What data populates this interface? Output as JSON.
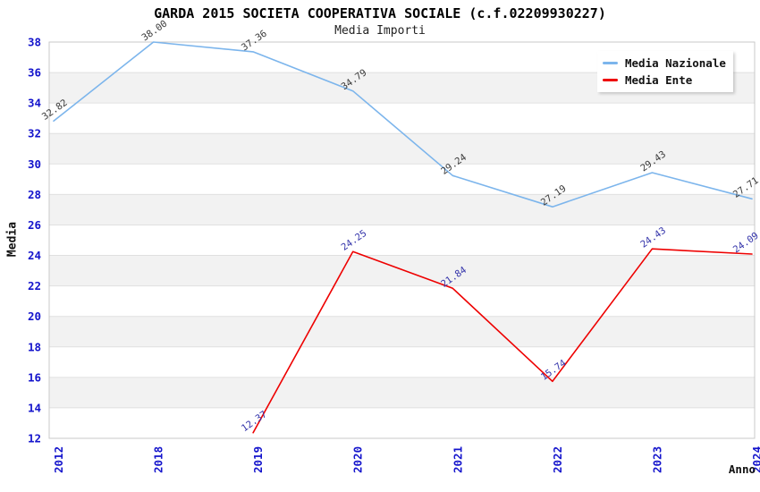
{
  "header": {
    "title": "GARDA 2015 SOCIETA COOPERATIVA SOCIALE (c.f.02209930227)",
    "subtitle": "Media Importi"
  },
  "legend": {
    "items": [
      {
        "label": "Media Nazionale",
        "color": "#7cb5ec"
      },
      {
        "label": "Media Ente",
        "color": "#ee0000"
      }
    ]
  },
  "axes": {
    "y_title": "Media",
    "x_title": "Anno",
    "y_tick_labels": [
      "12",
      "14",
      "16",
      "18",
      "20",
      "22",
      "24",
      "26",
      "28",
      "30",
      "32",
      "34",
      "36",
      "38"
    ],
    "x_tick_labels": [
      "2012",
      "2018",
      "2019",
      "2020",
      "2021",
      "2022",
      "2023",
      "2024"
    ]
  },
  "colors": {
    "tick_label": "#1414cc",
    "grid_line": "#e0e0e0",
    "plot_border": "#c9c9c9",
    "band_fill": "#f2f2f2",
    "nazionale_line": "#7cb5ec",
    "ente_line": "#ee0000",
    "nazionale_point_label": "#3a3a3a",
    "ente_point_label": "#3333aa"
  },
  "chart_data": {
    "type": "line",
    "title": "GARDA 2015 SOCIETA COOPERATIVA SOCIALE (c.f.02209930227)",
    "subtitle": "Media Importi",
    "xlabel": "Anno",
    "ylabel": "Media",
    "categories": [
      "2012",
      "2018",
      "2019",
      "2020",
      "2021",
      "2022",
      "2023",
      "2024"
    ],
    "series": [
      {
        "name": "Media Nazionale",
        "color": "#7cb5ec",
        "label_color": "#3a3a3a",
        "values": [
          32.82,
          38.0,
          37.36,
          34.79,
          29.24,
          27.19,
          29.43,
          27.71
        ]
      },
      {
        "name": "Media Ente",
        "color": "#ee0000",
        "label_color": "#3333aa",
        "values": [
          null,
          null,
          12.37,
          24.25,
          21.84,
          15.74,
          24.43,
          24.09
        ]
      }
    ],
    "ylim": [
      12,
      38
    ],
    "ytick_step": 2,
    "grid": true,
    "banded_background": true,
    "point_labels": "values with 2 decimals, rotated -35deg",
    "legend_position": "top-right"
  }
}
